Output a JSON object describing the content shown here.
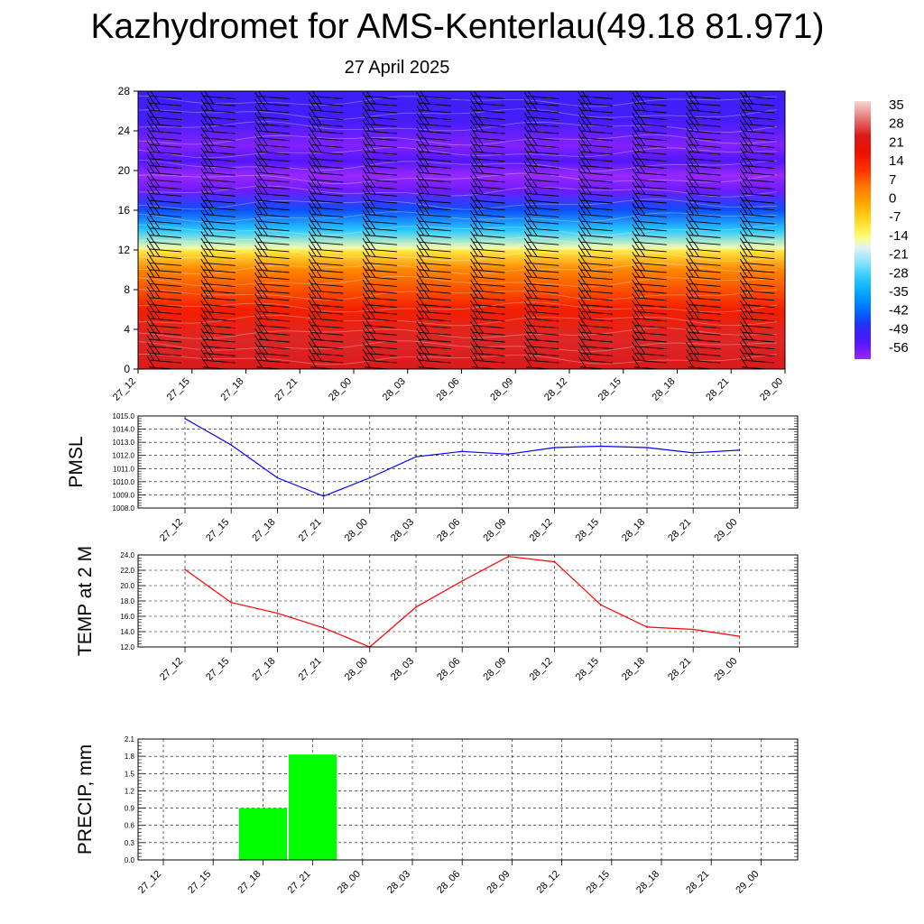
{
  "title": "Kazhydromet for AMS-Kenterlau(49.18 81.971)",
  "subtitle": "27 April 2025",
  "time_labels": [
    "27_12",
    "27_15",
    "27_18",
    "27_21",
    "28_00",
    "28_03",
    "28_06",
    "28_09",
    "28_12",
    "28_15",
    "28_18",
    "28_21",
    "29_00"
  ],
  "colors": {
    "pmsl_line": "#0000ff",
    "temp_line": "#ff0000",
    "precip_bar": "#00ff00"
  },
  "chart_data": [
    {
      "type": "heatmap",
      "x": [
        "27_12",
        "27_15",
        "27_18",
        "27_21",
        "28_00",
        "28_03",
        "28_06",
        "28_09",
        "28_12",
        "28_15",
        "28_18",
        "28_21",
        "29_00"
      ],
      "y_ticks": [
        0,
        4,
        8,
        12,
        16,
        20,
        24,
        28
      ],
      "ylim": [
        0,
        28
      ],
      "colorbar": {
        "labels": [
          "35",
          "28",
          "21",
          "14",
          "7",
          "0",
          "-7",
          "-14",
          "-21",
          "-28",
          "-35",
          "-42",
          "-49",
          "-56"
        ],
        "range": [
          -63,
          42
        ]
      },
      "profile": [
        [
          0,
          28
        ],
        [
          3,
          29
        ],
        [
          6,
          18
        ],
        [
          10,
          5
        ],
        [
          11.9,
          -9
        ],
        [
          12.2,
          -15
        ],
        [
          14,
          -30
        ],
        [
          16,
          -46
        ],
        [
          18,
          -59
        ],
        [
          19.5,
          -63
        ],
        [
          21,
          -56
        ],
        [
          22.5,
          -61
        ],
        [
          25,
          -54
        ],
        [
          28,
          -53
        ]
      ],
      "wind_barbs": true
    },
    {
      "type": "line",
      "ylabel": "PMSL",
      "categories": [
        "27_12",
        "27_15",
        "27_18",
        "27_21",
        "28_00",
        "28_03",
        "28_06",
        "28_09",
        "28_12",
        "28_15",
        "28_18",
        "28_21",
        "29_00"
      ],
      "values": [
        1014.8,
        1012.8,
        1010.3,
        1008.9,
        1010.3,
        1011.9,
        1012.3,
        1012.1,
        1012.6,
        1012.7,
        1012.6,
        1012.2,
        1012.4
      ],
      "ylim": [
        1008.0,
        1015.0
      ],
      "yticks": [
        "1008.0",
        "1009.0",
        "1010.0",
        "1011.0",
        "1012.0",
        "1013.0",
        "1014.0",
        "1015.0"
      ],
      "grid": true
    },
    {
      "type": "line",
      "ylabel": "TEMP at 2 M",
      "categories": [
        "27_12",
        "27_15",
        "27_18",
        "27_21",
        "28_00",
        "28_03",
        "28_06",
        "28_09",
        "28_12",
        "28_15",
        "28_18",
        "28_21",
        "29_00"
      ],
      "values": [
        22.1,
        17.8,
        16.4,
        14.5,
        12.0,
        17.2,
        20.6,
        23.8,
        23.1,
        17.5,
        14.6,
        14.3,
        13.4
      ],
      "ylim": [
        12.0,
        24.0
      ],
      "yticks": [
        "12.0",
        "14.0",
        "16.0",
        "18.0",
        "20.0",
        "22.0",
        "24.0"
      ],
      "grid": true
    },
    {
      "type": "bar",
      "ylabel": "PRECIP, mm",
      "categories": [
        "27_12",
        "27_15",
        "27_18",
        "27_21",
        "28_00",
        "28_03",
        "28_06",
        "28_09",
        "28_12",
        "28_15",
        "28_18",
        "28_21",
        "29_00"
      ],
      "values": [
        0,
        0,
        0.9,
        1.83,
        0,
        0,
        0,
        0,
        0,
        0,
        0,
        0,
        0
      ],
      "ylim": [
        0,
        2.1
      ],
      "yticks": [
        "0.0",
        "0.3",
        "0.6",
        "0.9",
        "1.2",
        "1.5",
        "1.8",
        "2.1"
      ],
      "grid": true
    }
  ]
}
